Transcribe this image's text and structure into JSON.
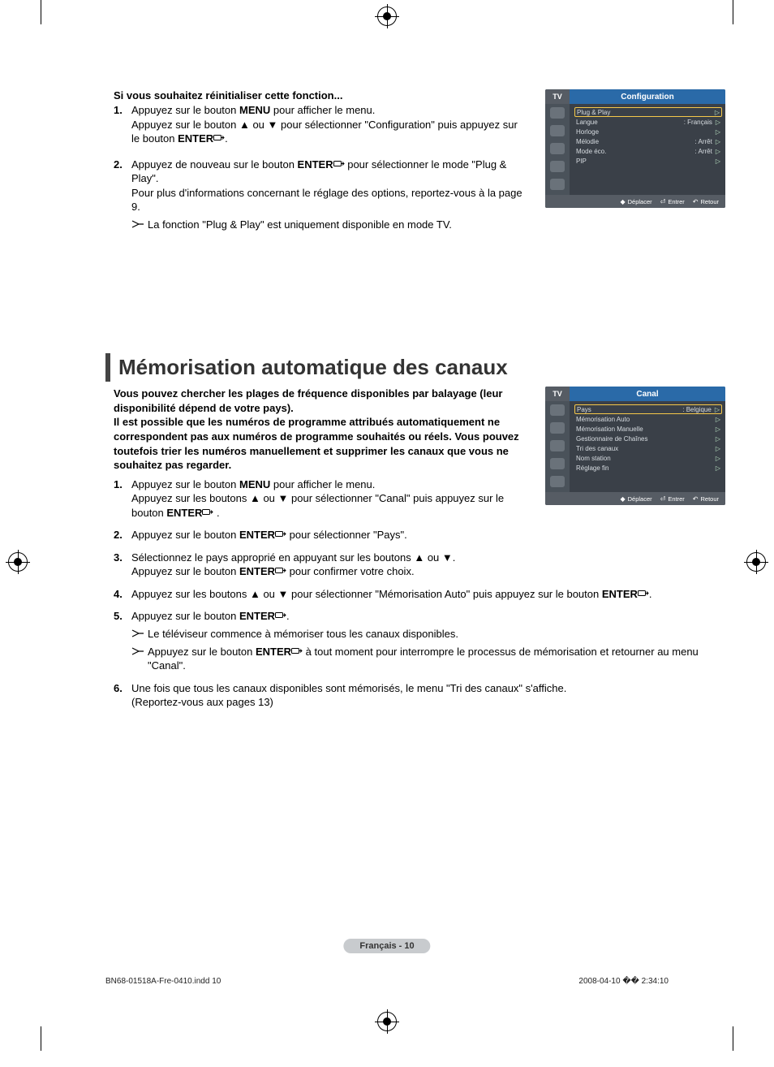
{
  "printer": {
    "indd_line": "BN68-01518A-Fre-0410.indd   10",
    "timestamp": "2008-04-10   �� 2:34:10"
  },
  "page_pill": "Français - 10",
  "section1": {
    "intro": "Si vous souhaitez réinitialiser cette fonction...",
    "steps": [
      {
        "num": "1.",
        "pre": "Appuyez sur le bouton ",
        "b1": "MENU",
        "mid1": " pour afficher le menu.\nAppuyez sur le bouton ▲ ou ▼ pour sélectionner \"Configuration\" puis appuyez sur le bouton ",
        "b2": "ENTER",
        "tail": "."
      },
      {
        "num": "2.",
        "pre": "Appuyez de nouveau sur le bouton ",
        "b1": "ENTER",
        "mid1": " pour sélectionner le mode \"Plug & Play\".\nPour plus d'informations concernant le réglage des options, reportez-vous à la page 9.",
        "b2": "",
        "tail": ""
      }
    ],
    "note": "La fonction \"Plug & Play\" est uniquement disponible en mode TV."
  },
  "section2": {
    "headline": "Mémorisation automatique des canaux",
    "lead": "Vous pouvez chercher les plages de fréquence disponibles par balayage (leur disponibilité dépend de votre pays).\nIl est possible que les numéros de programme attribués automatiquement ne correspondent pas aux numéros de programme souhaités ou réels. Vous pouvez toutefois trier les numéros manuellement et supprimer les canaux que vous ne souhaitez pas regarder.",
    "steps": [
      {
        "num": "1.",
        "html_parts": [
          "Appuyez sur le bouton ",
          "MENU",
          " pour afficher le menu.\nAppuyez sur les boutons ▲ ou ▼ pour sélectionner \"Canal\" puis appuyez sur le bouton ",
          "ENTER",
          " ."
        ]
      },
      {
        "num": "2.",
        "html_parts": [
          "Appuyez sur le bouton ",
          "ENTER",
          " pour sélectionner \"Pays\"."
        ]
      },
      {
        "num": "3.",
        "html_parts": [
          "Sélectionnez le pays approprié en appuyant sur les boutons ▲ ou ▼.\nAppuyez sur le bouton ",
          "ENTER",
          " pour confirmer votre choix."
        ]
      },
      {
        "num": "4.",
        "html_parts": [
          "Appuyez sur les boutons ▲ ou ▼ pour sélectionner \"Mémorisation Auto\" puis appuyez sur le bouton ",
          "ENTER",
          "."
        ],
        "wide": true
      },
      {
        "num": "5.",
        "html_parts": [
          "Appuyez sur le bouton ",
          "ENTER",
          "."
        ],
        "wide": true
      },
      {
        "num": "6.",
        "html_parts": [
          "Une fois que tous les canaux disponibles sont mémorisés, le menu \"Tri des canaux\" s'affiche.\n(Reportez-vous aux pages 13)"
        ],
        "wide": true
      }
    ],
    "notes5": [
      "Le téléviseur commence à mémoriser tous les canaux disponibles.",
      "Appuyez sur le bouton ENTER à tout moment pour interrompre le processus de mémorisation et retourner au menu \"Canal\"."
    ]
  },
  "osd1": {
    "tv": "TV",
    "title": "Configuration",
    "rows": [
      {
        "label": "Plug & Play",
        "value": "",
        "sel": true
      },
      {
        "label": "Langue",
        "value": ": Français"
      },
      {
        "label": "Horloge",
        "value": ""
      },
      {
        "label": "Mélodie",
        "value": ": Arrêt"
      },
      {
        "label": "Mode éco.",
        "value": ": Arrêt"
      },
      {
        "label": "PIP",
        "value": ""
      }
    ],
    "foot": {
      "move": "Déplacer",
      "enter": "Entrer",
      "return": "Retour"
    }
  },
  "osd2": {
    "tv": "TV",
    "title": "Canal",
    "rows": [
      {
        "label": "Pays",
        "value": ": Belgique",
        "sel": true
      },
      {
        "label": "Mémorisation Auto",
        "value": ""
      },
      {
        "label": "Mémorisation Manuelle",
        "value": ""
      },
      {
        "label": "Gestionnaire de Chaînes",
        "value": ""
      },
      {
        "label": "Tri des canaux",
        "value": ""
      },
      {
        "label": "Nom station",
        "value": ""
      },
      {
        "label": "Réglage fin",
        "value": ""
      }
    ],
    "foot": {
      "move": "Déplacer",
      "enter": "Entrer",
      "return": "Retour"
    }
  },
  "colors": {
    "osd_bg": "#3a4048",
    "osd_header_blue": "#2a6aa8",
    "osd_side": "#4a525a",
    "osd_highlight": "#f5c84a",
    "pill_bg": "#c8cbce"
  }
}
